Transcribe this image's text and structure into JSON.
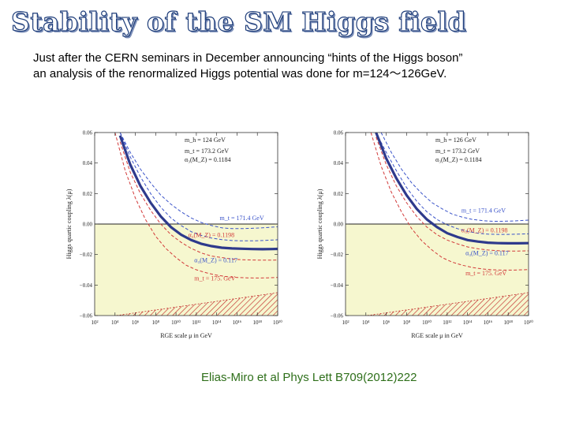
{
  "slide": {
    "title": "Stability of the SM Higgs field",
    "intro_line1": "Just after the CERN seminars in December announcing “hints of the Higgs boson”",
    "intro_line2": "an analysis of the renormalized Higgs potential was done for m=124～126GeV.",
    "citation": "Elias-Miro et al Phys Lett B709(2012)222"
  },
  "colors": {
    "central": "#2e3a8c",
    "blue_dashed": "#3a53c9",
    "red_dashed": "#d23a3a",
    "unstable_fill": "#f6f7cf",
    "hatch": "#c22a2a",
    "title_outline": "#1e3d7a",
    "citation": "#2e6f1a"
  },
  "chart_data": [
    {
      "type": "line",
      "title": "m_h = 124 GeV",
      "xlabel": "RGE scale μ in GeV",
      "ylabel": "Higgs quartic coupling λ(μ)",
      "x_scale": "log10",
      "xlim": [
        2,
        20
      ],
      "ylim": [
        -0.06,
        0.06
      ],
      "x_tick_labels": [
        "10²",
        "10⁴",
        "10⁶",
        "10⁸",
        "10¹⁰",
        "10¹²",
        "10¹⁴",
        "10¹⁶",
        "10¹⁸",
        "10²⁰"
      ],
      "x_tick_exponents": [
        2,
        4,
        6,
        8,
        10,
        12,
        14,
        16,
        18,
        20
      ],
      "y_ticks": [
        -0.06,
        -0.04,
        -0.02,
        0.0,
        0.02,
        0.04,
        0.06
      ],
      "y_tick_labels": [
        "−0.06",
        "−0.04",
        "−0.02",
        "0.00",
        "0.02",
        "0.04",
        "0.06"
      ],
      "legend_top": [
        "m_t = 173.2 GeV",
        "α₃(M_Z) = 0.1184"
      ],
      "unstable_region": {
        "y_from": -0.06,
        "y_to": 0.0
      },
      "instability_boundary": {
        "x": [
          2,
          20
        ],
        "y": [
          -0.062,
          -0.045
        ]
      },
      "series": [
        {
          "name": "central",
          "style": "solid",
          "color": "central",
          "x": [
            4.5,
            5.5,
            6.5,
            7.5,
            8.5,
            9.5,
            10.5,
            11.5,
            12.5,
            13.5,
            14.5,
            15.5,
            16.5,
            17.5,
            18.5,
            19.5,
            20
          ],
          "y": [
            0.058,
            0.039,
            0.025,
            0.014,
            0.005,
            -0.002,
            -0.007,
            -0.0105,
            -0.013,
            -0.0145,
            -0.0155,
            -0.016,
            -0.0162,
            -0.0164,
            -0.0165,
            -0.0164,
            -0.0163
          ]
        },
        {
          "name": "m_t = 171.4 GeV",
          "style": "dashed",
          "color": "blue_dashed",
          "x": [
            4.5,
            5.5,
            6.5,
            7.5,
            8.5,
            9.5,
            10.5,
            11.5,
            12.5,
            13.5,
            14.5,
            15.5,
            16.5,
            17.5,
            18.5,
            19.5,
            20
          ],
          "y": [
            0.06,
            0.047,
            0.036,
            0.027,
            0.019,
            0.013,
            0.008,
            0.004,
            0.001,
            -0.001,
            -0.0025,
            -0.003,
            -0.003,
            -0.0028,
            -0.0025,
            -0.002,
            -0.0018
          ]
        },
        {
          "name": "α₃(M_Z) = 0.1198",
          "style": "dashed",
          "color": "red_dashed",
          "x": [
            4.5,
            5.5,
            6.5,
            7.5,
            8.5,
            9.5,
            10.5,
            11.5,
            12.5,
            13.5,
            14.5,
            15.5,
            16.5,
            17.5,
            18.5,
            19.5,
            20
          ],
          "y": [
            0.054,
            0.034,
            0.02,
            0.009,
            0.0,
            -0.007,
            -0.012,
            -0.016,
            -0.019,
            -0.021,
            -0.022,
            -0.023,
            -0.0234,
            -0.0236,
            -0.0237,
            -0.0237,
            -0.0236
          ]
        },
        {
          "name": "α₃(M_Z) = 0.117",
          "style": "dashed",
          "color": "blue_dashed",
          "x": [
            4.5,
            5.5,
            6.5,
            7.5,
            8.5,
            9.5,
            10.5,
            11.5,
            12.5,
            13.5,
            14.5,
            15.5,
            16.5,
            17.5,
            18.5,
            19.5,
            20
          ],
          "y": [
            0.06,
            0.044,
            0.031,
            0.02,
            0.011,
            0.004,
            -0.001,
            -0.005,
            -0.0075,
            -0.0092,
            -0.0102,
            -0.0108,
            -0.011,
            -0.011,
            -0.0108,
            -0.0105,
            -0.0103
          ]
        },
        {
          "name": "m_t = 175. GeV",
          "style": "dashed",
          "color": "red_dashed",
          "x": [
            4.0,
            5.0,
            6.0,
            7.0,
            8.0,
            9.0,
            10.0,
            11.0,
            12.0,
            13.0,
            14.0,
            15.0,
            16.0,
            17.0,
            18.0,
            19.0,
            20
          ],
          "y": [
            0.06,
            0.035,
            0.017,
            0.003,
            -0.008,
            -0.016,
            -0.022,
            -0.027,
            -0.03,
            -0.032,
            -0.0335,
            -0.0345,
            -0.035,
            -0.0353,
            -0.0354,
            -0.0353,
            -0.035
          ]
        }
      ],
      "annotations": [
        {
          "text": "m_t = 171.4 GeV",
          "x": 14.3,
          "y": 0.0025,
          "color": "blue_dashed"
        },
        {
          "text": "α₃(M_Z) = 0.1198",
          "x": 11.2,
          "y": -0.0085,
          "color": "red_dashed"
        },
        {
          "text": "α₃(M_Z) = 0.117",
          "x": 11.8,
          "y": -0.025,
          "color": "blue_dashed"
        },
        {
          "text": "m_t = 175. GeV",
          "x": 11.8,
          "y": -0.037,
          "color": "red_dashed"
        }
      ]
    },
    {
      "type": "line",
      "title": "m_h = 126 GeV",
      "xlabel": "RGE scale μ in GeV",
      "ylabel": "Higgs quartic coupling λ(μ)",
      "x_scale": "log10",
      "xlim": [
        2,
        20
      ],
      "ylim": [
        -0.06,
        0.06
      ],
      "x_tick_labels": [
        "10²",
        "10⁴",
        "10⁶",
        "10⁸",
        "10¹⁰",
        "10¹²",
        "10¹⁴",
        "10¹⁶",
        "10¹⁸",
        "10²⁰"
      ],
      "x_tick_exponents": [
        2,
        4,
        6,
        8,
        10,
        12,
        14,
        16,
        18,
        20
      ],
      "y_ticks": [
        -0.06,
        -0.04,
        -0.02,
        0.0,
        0.02,
        0.04,
        0.06
      ],
      "y_tick_labels": [
        "−0.06",
        "−0.04",
        "−0.02",
        "0.00",
        "0.02",
        "0.04",
        "0.06"
      ],
      "legend_top": [
        "m_t = 173.2 GeV",
        "α₃(M_Z) = 0.1184"
      ],
      "unstable_region": {
        "y_from": -0.06,
        "y_to": 0.0
      },
      "instability_boundary": {
        "x": [
          2,
          20
        ],
        "y": [
          -0.062,
          -0.045
        ]
      },
      "series": [
        {
          "name": "central",
          "style": "solid",
          "color": "central",
          "x": [
            5.0,
            6.0,
            7.0,
            8.0,
            9.0,
            10.0,
            11.0,
            12.0,
            13.0,
            14.0,
            15.0,
            16.0,
            17.0,
            18.0,
            19.0,
            20
          ],
          "y": [
            0.06,
            0.043,
            0.03,
            0.019,
            0.01,
            0.003,
            -0.002,
            -0.006,
            -0.0085,
            -0.0105,
            -0.0115,
            -0.0122,
            -0.0125,
            -0.0126,
            -0.0126,
            -0.0125
          ]
        },
        {
          "name": "m_t = 171.4 GeV",
          "style": "dashed",
          "color": "blue_dashed",
          "x": [
            5.5,
            6.5,
            7.5,
            8.5,
            9.5,
            10.5,
            11.5,
            12.5,
            13.5,
            14.5,
            15.5,
            16.5,
            17.5,
            18.5,
            19.5,
            20
          ],
          "y": [
            0.06,
            0.047,
            0.036,
            0.027,
            0.02,
            0.014,
            0.01,
            0.0065,
            0.0045,
            0.003,
            0.0022,
            0.0018,
            0.0018,
            0.002,
            0.0024,
            0.0026
          ]
        },
        {
          "name": "α₃(M_Z) = 0.1198",
          "style": "dashed",
          "color": "red_dashed",
          "x": [
            5.0,
            6.0,
            7.0,
            8.0,
            9.0,
            10.0,
            11.0,
            12.0,
            13.0,
            14.0,
            15.0,
            16.0,
            17.0,
            18.0,
            19.0,
            20
          ],
          "y": [
            0.057,
            0.039,
            0.025,
            0.014,
            0.005,
            -0.002,
            -0.007,
            -0.0105,
            -0.013,
            -0.015,
            -0.0162,
            -0.017,
            -0.0175,
            -0.0177,
            -0.0177,
            -0.0176
          ]
        },
        {
          "name": "α₃(M_Z) = 0.117",
          "style": "dashed",
          "color": "blue_dashed",
          "x": [
            5.0,
            6.0,
            7.0,
            8.0,
            9.0,
            10.0,
            11.0,
            12.0,
            13.0,
            14.0,
            15.0,
            16.0,
            17.0,
            18.0,
            19.0,
            20
          ],
          "y": [
            0.06,
            0.047,
            0.035,
            0.024,
            0.015,
            0.008,
            0.003,
            -0.0005,
            -0.003,
            -0.0048,
            -0.006,
            -0.0066,
            -0.0068,
            -0.0068,
            -0.0066,
            -0.0064
          ]
        },
        {
          "name": "m_t = 175. GeV",
          "style": "dashed",
          "color": "red_dashed",
          "x": [
            4.5,
            5.5,
            6.5,
            7.5,
            8.5,
            9.5,
            10.5,
            11.5,
            12.5,
            13.5,
            14.5,
            15.5,
            16.5,
            17.5,
            18.5,
            19.5,
            20
          ],
          "y": [
            0.06,
            0.038,
            0.021,
            0.008,
            -0.003,
            -0.011,
            -0.017,
            -0.022,
            -0.025,
            -0.027,
            -0.0285,
            -0.0295,
            -0.03,
            -0.0302,
            -0.0302,
            -0.03,
            -0.0298
          ]
        }
      ],
      "annotations": [
        {
          "text": "m_t = 171.4 GeV",
          "x": 13.4,
          "y": 0.0075,
          "color": "blue_dashed"
        },
        {
          "text": "α₃(M_Z) = 0.1198",
          "x": 13.4,
          "y": -0.0055,
          "color": "red_dashed"
        },
        {
          "text": "α₃(M_Z) = 0.117",
          "x": 13.8,
          "y": -0.0205,
          "color": "blue_dashed"
        },
        {
          "text": "m_t = 175. GeV",
          "x": 13.8,
          "y": -0.0335,
          "color": "red_dashed"
        }
      ]
    }
  ]
}
